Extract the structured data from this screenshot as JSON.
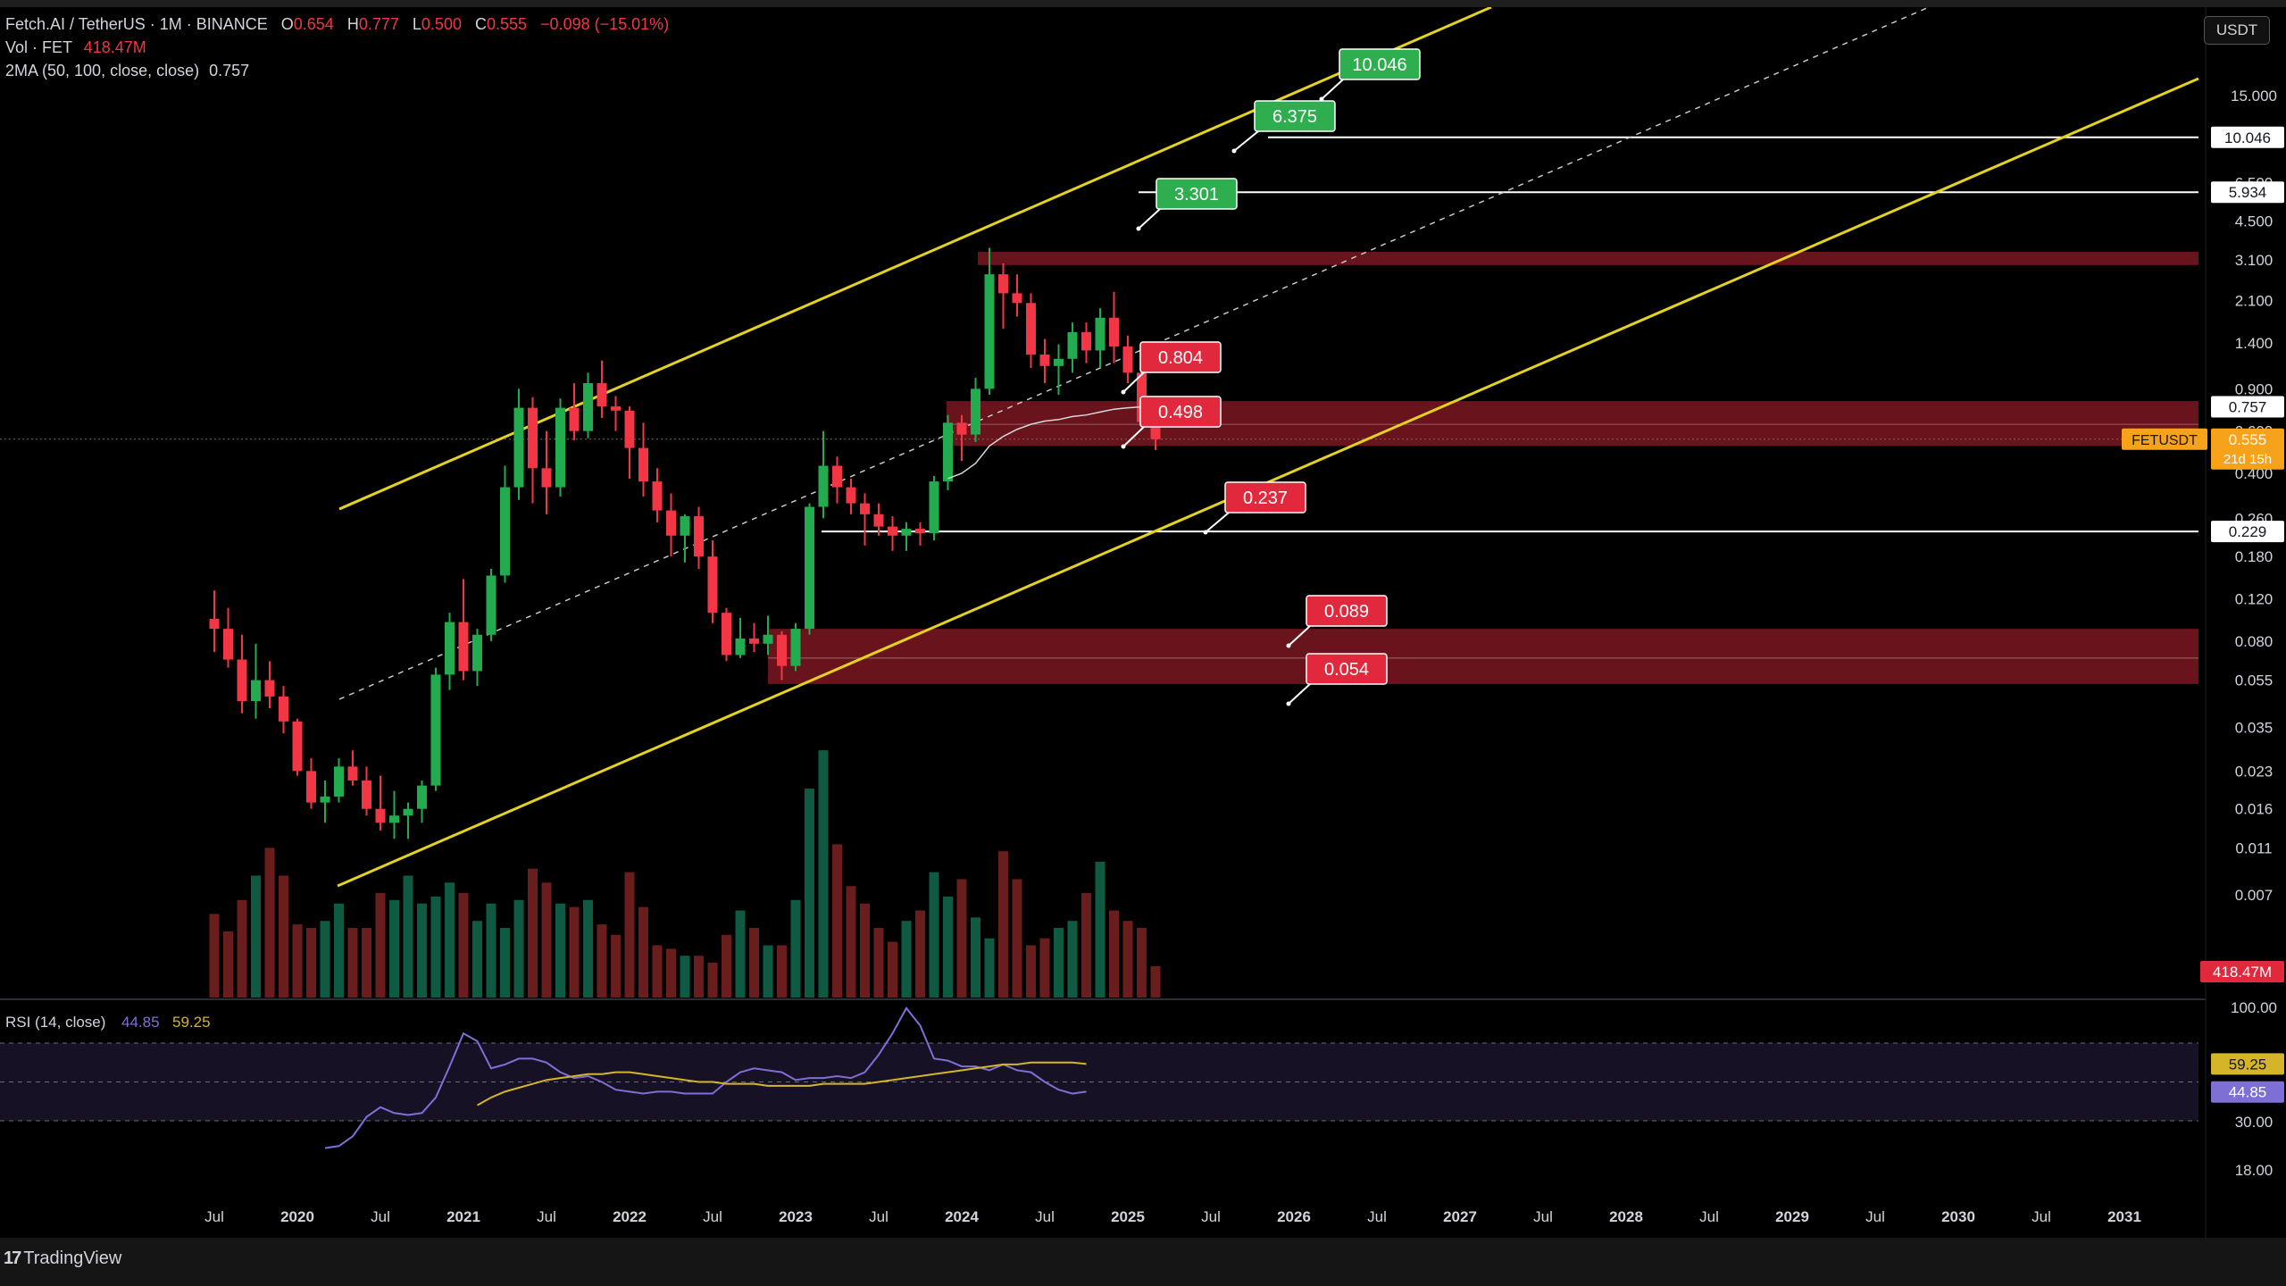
{
  "header": {
    "symbol": "Fetch.AI / TetherUS · 1M · BINANCE",
    "ohlc": [
      {
        "k": "O",
        "v": "0.654"
      },
      {
        "k": "H",
        "v": "0.777"
      },
      {
        "k": "L",
        "v": "0.500"
      },
      {
        "k": "C",
        "v": "0.555"
      },
      {
        "k": "",
        "v": "−0.098 (−15.01%)"
      }
    ],
    "vol_label": "Vol · FET",
    "vol_value": "418.47M",
    "ma_label": "2MA (50, 100, close, close)",
    "ma_value": "0.757",
    "currency": "USDT"
  },
  "footer": {
    "brand": "TradingView",
    "logo": "17"
  },
  "colors": {
    "up": "#22ab4f",
    "down": "#f23645",
    "channel": "#e4d21f",
    "rsi": "#7e6fd6",
    "rsi_ma": "#d4b52a",
    "zone": "#8c1a26",
    "price_badge": "#f7a21b",
    "vol_up": "#0f5a43",
    "vol_down": "#6a1d1d"
  },
  "chart_data": {
    "type": "candlestick",
    "symbol": "FETUSDT",
    "interval": "1M",
    "scale": "log",
    "y_ticks": [
      "15.000",
      "6.500",
      "4.500",
      "3.100",
      "2.100",
      "1.400",
      "0.900",
      "0.600",
      "0.400",
      "0.260",
      "0.180",
      "0.120",
      "0.080",
      "0.055",
      "0.035",
      "0.023",
      "0.016",
      "0.011",
      "0.007"
    ],
    "x_ticks": [
      "Jul",
      "2020",
      "Jul",
      "2021",
      "Jul",
      "2022",
      "Jul",
      "2023",
      "Jul",
      "2024",
      "Jul",
      "2025",
      "Jul",
      "2026",
      "Jul",
      "2027",
      "Jul",
      "2028",
      "Jul",
      "2029",
      "Jul",
      "2030",
      "Jul",
      "2031"
    ],
    "candles": [
      {
        "d": "2019-07",
        "o": 0.099,
        "h": 0.13,
        "l": 0.072,
        "c": 0.09
      },
      {
        "d": "2019-08",
        "o": 0.09,
        "h": 0.11,
        "l": 0.062,
        "c": 0.067
      },
      {
        "d": "2019-09",
        "o": 0.067,
        "h": 0.085,
        "l": 0.04,
        "c": 0.045
      },
      {
        "d": "2019-10",
        "o": 0.045,
        "h": 0.078,
        "l": 0.038,
        "c": 0.055
      },
      {
        "d": "2019-11",
        "o": 0.055,
        "h": 0.066,
        "l": 0.042,
        "c": 0.047
      },
      {
        "d": "2019-12",
        "o": 0.047,
        "h": 0.052,
        "l": 0.033,
        "c": 0.037
      },
      {
        "d": "2020-01",
        "o": 0.037,
        "h": 0.038,
        "l": 0.022,
        "c": 0.023
      },
      {
        "d": "2020-02",
        "o": 0.023,
        "h": 0.026,
        "l": 0.016,
        "c": 0.017
      },
      {
        "d": "2020-03",
        "o": 0.017,
        "h": 0.021,
        "l": 0.014,
        "c": 0.018
      },
      {
        "d": "2020-04",
        "o": 0.018,
        "h": 0.026,
        "l": 0.017,
        "c": 0.024
      },
      {
        "d": "2020-05",
        "o": 0.024,
        "h": 0.028,
        "l": 0.02,
        "c": 0.021
      },
      {
        "d": "2020-06",
        "o": 0.021,
        "h": 0.024,
        "l": 0.015,
        "c": 0.016
      },
      {
        "d": "2020-07",
        "o": 0.016,
        "h": 0.022,
        "l": 0.013,
        "c": 0.014
      },
      {
        "d": "2020-08",
        "o": 0.014,
        "h": 0.019,
        "l": 0.012,
        "c": 0.015
      },
      {
        "d": "2020-09",
        "o": 0.015,
        "h": 0.017,
        "l": 0.012,
        "c": 0.016
      },
      {
        "d": "2020-10",
        "o": 0.016,
        "h": 0.021,
        "l": 0.014,
        "c": 0.02
      },
      {
        "d": "2020-11",
        "o": 0.02,
        "h": 0.062,
        "l": 0.019,
        "c": 0.058
      },
      {
        "d": "2020-12",
        "o": 0.058,
        "h": 0.105,
        "l": 0.05,
        "c": 0.096
      },
      {
        "d": "2021-01",
        "o": 0.096,
        "h": 0.145,
        "l": 0.055,
        "c": 0.06
      },
      {
        "d": "2021-02",
        "o": 0.06,
        "h": 0.09,
        "l": 0.052,
        "c": 0.085
      },
      {
        "d": "2021-03",
        "o": 0.085,
        "h": 0.16,
        "l": 0.08,
        "c": 0.15
      },
      {
        "d": "2021-04",
        "o": 0.15,
        "h": 0.43,
        "l": 0.14,
        "c": 0.35
      },
      {
        "d": "2021-05",
        "o": 0.35,
        "h": 0.9,
        "l": 0.31,
        "c": 0.75
      },
      {
        "d": "2021-06",
        "o": 0.75,
        "h": 0.83,
        "l": 0.3,
        "c": 0.42
      },
      {
        "d": "2021-07",
        "o": 0.42,
        "h": 0.6,
        "l": 0.27,
        "c": 0.35
      },
      {
        "d": "2021-08",
        "o": 0.35,
        "h": 0.82,
        "l": 0.32,
        "c": 0.75
      },
      {
        "d": "2021-09",
        "o": 0.75,
        "h": 0.95,
        "l": 0.55,
        "c": 0.6
      },
      {
        "d": "2021-10",
        "o": 0.6,
        "h": 1.05,
        "l": 0.56,
        "c": 0.95
      },
      {
        "d": "2021-11",
        "o": 0.95,
        "h": 1.18,
        "l": 0.68,
        "c": 0.76
      },
      {
        "d": "2021-12",
        "o": 0.76,
        "h": 0.84,
        "l": 0.6,
        "c": 0.73
      },
      {
        "d": "2022-01",
        "o": 0.73,
        "h": 0.76,
        "l": 0.38,
        "c": 0.51
      },
      {
        "d": "2022-02",
        "o": 0.51,
        "h": 0.65,
        "l": 0.32,
        "c": 0.37
      },
      {
        "d": "2022-03",
        "o": 0.37,
        "h": 0.42,
        "l": 0.25,
        "c": 0.28
      },
      {
        "d": "2022-04",
        "o": 0.28,
        "h": 0.33,
        "l": 0.18,
        "c": 0.22
      },
      {
        "d": "2022-05",
        "o": 0.22,
        "h": 0.27,
        "l": 0.17,
        "c": 0.265
      },
      {
        "d": "2022-06",
        "o": 0.265,
        "h": 0.29,
        "l": 0.16,
        "c": 0.18
      },
      {
        "d": "2022-07",
        "o": 0.18,
        "h": 0.21,
        "l": 0.095,
        "c": 0.105
      },
      {
        "d": "2022-08",
        "o": 0.105,
        "h": 0.11,
        "l": 0.066,
        "c": 0.07
      },
      {
        "d": "2022-09",
        "o": 0.07,
        "h": 0.1,
        "l": 0.068,
        "c": 0.082
      },
      {
        "d": "2022-10",
        "o": 0.082,
        "h": 0.095,
        "l": 0.072,
        "c": 0.078
      },
      {
        "d": "2022-11",
        "o": 0.078,
        "h": 0.102,
        "l": 0.07,
        "c": 0.085
      },
      {
        "d": "2022-12",
        "o": 0.085,
        "h": 0.088,
        "l": 0.055,
        "c": 0.063
      },
      {
        "d": "2023-01",
        "o": 0.063,
        "h": 0.095,
        "l": 0.06,
        "c": 0.09
      },
      {
        "d": "2023-02",
        "o": 0.09,
        "h": 0.3,
        "l": 0.085,
        "c": 0.29
      },
      {
        "d": "2023-03",
        "o": 0.29,
        "h": 0.6,
        "l": 0.26,
        "c": 0.43
      },
      {
        "d": "2023-04",
        "o": 0.43,
        "h": 0.47,
        "l": 0.3,
        "c": 0.35
      },
      {
        "d": "2023-05",
        "o": 0.35,
        "h": 0.38,
        "l": 0.27,
        "c": 0.3
      },
      {
        "d": "2023-06",
        "o": 0.3,
        "h": 0.33,
        "l": 0.2,
        "c": 0.27
      },
      {
        "d": "2023-07",
        "o": 0.27,
        "h": 0.3,
        "l": 0.22,
        "c": 0.24
      },
      {
        "d": "2023-08",
        "o": 0.24,
        "h": 0.265,
        "l": 0.19,
        "c": 0.22
      },
      {
        "d": "2023-09",
        "o": 0.22,
        "h": 0.25,
        "l": 0.19,
        "c": 0.235
      },
      {
        "d": "2023-10",
        "o": 0.235,
        "h": 0.25,
        "l": 0.2,
        "c": 0.225
      },
      {
        "d": "2023-11",
        "o": 0.225,
        "h": 0.39,
        "l": 0.21,
        "c": 0.37
      },
      {
        "d": "2023-12",
        "o": 0.37,
        "h": 0.7,
        "l": 0.34,
        "c": 0.65
      },
      {
        "d": "2024-01",
        "o": 0.65,
        "h": 0.7,
        "l": 0.45,
        "c": 0.58
      },
      {
        "d": "2024-02",
        "o": 0.58,
        "h": 1.0,
        "l": 0.54,
        "c": 0.9
      },
      {
        "d": "2024-03",
        "o": 0.9,
        "h": 3.48,
        "l": 0.85,
        "c": 2.7
      },
      {
        "d": "2024-04",
        "o": 2.7,
        "h": 3.0,
        "l": 1.6,
        "c": 2.25
      },
      {
        "d": "2024-05",
        "o": 2.25,
        "h": 2.7,
        "l": 1.8,
        "c": 2.05
      },
      {
        "d": "2024-06",
        "o": 2.05,
        "h": 2.25,
        "l": 1.1,
        "c": 1.25
      },
      {
        "d": "2024-07",
        "o": 1.25,
        "h": 1.45,
        "l": 0.95,
        "c": 1.12
      },
      {
        "d": "2024-08",
        "o": 1.12,
        "h": 1.38,
        "l": 0.85,
        "c": 1.2
      },
      {
        "d": "2024-09",
        "o": 1.2,
        "h": 1.7,
        "l": 1.05,
        "c": 1.55
      },
      {
        "d": "2024-10",
        "o": 1.55,
        "h": 1.7,
        "l": 1.15,
        "c": 1.3
      },
      {
        "d": "2024-11",
        "o": 1.3,
        "h": 1.95,
        "l": 1.1,
        "c": 1.78
      },
      {
        "d": "2024-12",
        "o": 1.78,
        "h": 2.28,
        "l": 1.15,
        "c": 1.35
      },
      {
        "d": "2025-01",
        "o": 1.35,
        "h": 1.5,
        "l": 0.95,
        "c": 1.05
      },
      {
        "d": "2025-02",
        "o": 1.05,
        "h": 1.1,
        "l": 0.62,
        "c": 0.654
      },
      {
        "d": "2025-03",
        "o": 0.654,
        "h": 0.777,
        "l": 0.5,
        "c": 0.555
      }
    ],
    "volume": [
      48,
      38,
      56,
      70,
      86,
      70,
      42,
      40,
      44,
      54,
      40,
      40,
      60,
      56,
      70,
      54,
      58,
      66,
      60,
      44,
      54,
      40,
      56,
      74,
      66,
      54,
      52,
      56,
      42,
      36,
      72,
      52,
      30,
      28,
      24,
      24,
      20,
      36,
      50,
      40,
      30,
      30,
      56,
      120,
      142,
      88,
      64,
      54,
      40,
      32,
      44,
      50,
      72,
      58,
      68,
      46,
      34,
      84,
      68,
      30,
      34,
      40,
      44,
      60,
      78,
      50,
      44,
      40,
      18
    ],
    "ma": [
      {
        "d": "2023-12",
        "v": 0.38
      },
      {
        "d": "2024-01",
        "v": 0.4
      },
      {
        "d": "2024-02",
        "v": 0.44
      },
      {
        "d": "2024-03",
        "v": 0.52
      },
      {
        "d": "2024-04",
        "v": 0.57
      },
      {
        "d": "2024-05",
        "v": 0.61
      },
      {
        "d": "2024-06",
        "v": 0.64
      },
      {
        "d": "2024-07",
        "v": 0.66
      },
      {
        "d": "2024-08",
        "v": 0.67
      },
      {
        "d": "2024-09",
        "v": 0.69
      },
      {
        "d": "2024-10",
        "v": 0.7
      },
      {
        "d": "2024-11",
        "v": 0.72
      },
      {
        "d": "2024-12",
        "v": 0.74
      },
      {
        "d": "2025-01",
        "v": 0.75
      },
      {
        "d": "2025-02",
        "v": 0.757
      },
      {
        "d": "2025-03",
        "v": 0.757
      }
    ],
    "zones": [
      {
        "from": 2.95,
        "to": 3.35
      },
      {
        "from": 0.52,
        "to": 0.8
      },
      {
        "from": 0.053,
        "to": 0.09
      }
    ],
    "hlines": [
      {
        "value": 10.046,
        "label": "10.046"
      },
      {
        "value": 5.934,
        "label": "5.934"
      },
      {
        "value": 0.229,
        "label": "0.229"
      }
    ],
    "axis_labels": [
      {
        "value": 0.757,
        "label": "0.757"
      }
    ],
    "last_price": {
      "symbol": "FETUSDT",
      "value": 0.555,
      "label": "0.555",
      "countdown": "21d 15h"
    },
    "volume_badge": "418.47M",
    "targets": [
      {
        "value": 10.046,
        "label": "10.046",
        "kind": "up"
      },
      {
        "value": 6.375,
        "label": "6.375",
        "kind": "up"
      },
      {
        "value": 3.301,
        "label": "3.301",
        "kind": "up"
      },
      {
        "value": 0.804,
        "label": "0.804",
        "kind": "down"
      },
      {
        "value": 0.498,
        "label": "0.498",
        "kind": "down"
      },
      {
        "value": 0.237,
        "label": "0.237",
        "kind": "down"
      },
      {
        "value": 0.089,
        "label": "0.089",
        "kind": "down"
      },
      {
        "value": 0.054,
        "label": "0.054",
        "kind": "down"
      }
    ],
    "rsi": {
      "label": "RSI (14, close)",
      "value": "44.85",
      "ma_value": "59.25",
      "y_ticks": [
        "100.00",
        "30.00",
        "18.00"
      ],
      "levels": [
        70,
        50,
        30
      ],
      "series": [
        16,
        17,
        22,
        32,
        37,
        34,
        33,
        34,
        42,
        58,
        75,
        71,
        57,
        59,
        62,
        62,
        60,
        55,
        52,
        53,
        50,
        46,
        45,
        44,
        45,
        45,
        44,
        44,
        44,
        50,
        55,
        57,
        56,
        55,
        51,
        52,
        52,
        53,
        52,
        55,
        64,
        75,
        88,
        79,
        62,
        61,
        58,
        58,
        56,
        59,
        56,
        55,
        50,
        46,
        44,
        45
      ],
      "ma_series": [
        38,
        42,
        45,
        47,
        49,
        51,
        52,
        53,
        54,
        54,
        55,
        55,
        54,
        53,
        52,
        51,
        50,
        50,
        49,
        49,
        49,
        48,
        48,
        48,
        48,
        49,
        49,
        49,
        49,
        50,
        51,
        52,
        53,
        54,
        55,
        56,
        57,
        58,
        59,
        59,
        60,
        60,
        60,
        60,
        59.25
      ]
    }
  }
}
